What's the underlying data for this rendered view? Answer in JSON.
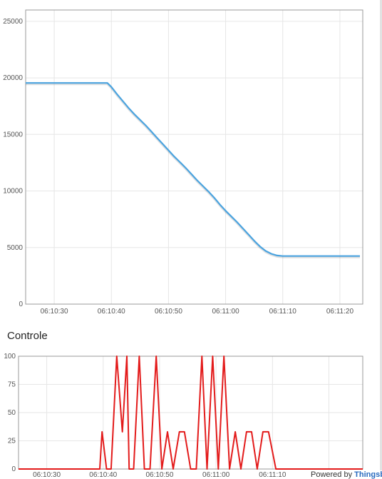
{
  "chart_data": [
    {
      "type": "line",
      "title": "",
      "xlabel": "",
      "ylabel": "",
      "x_ticks": [
        "06:10:30",
        "06:10:40",
        "06:10:50",
        "06:11:00",
        "06:11:10",
        "06:11:20"
      ],
      "x_tick_seconds": [
        30,
        40,
        50,
        60,
        70,
        80
      ],
      "xlim_seconds": [
        25,
        84
      ],
      "ylim": [
        0,
        26000
      ],
      "y_ticks": [
        0,
        5000,
        10000,
        15000,
        20000,
        25000
      ],
      "grid": true,
      "series": [
        {
          "color": "#4aa3df",
          "x": [
            25,
            31,
            36,
            39.3,
            40,
            41,
            42,
            43,
            44,
            45,
            46,
            47,
            48,
            49,
            50,
            51,
            52,
            53,
            54,
            55,
            56,
            57,
            58,
            59,
            60,
            61,
            62,
            63,
            64,
            65,
            66,
            67,
            68,
            69,
            70,
            71,
            72,
            73,
            76,
            80,
            83.5
          ],
          "y": [
            19550,
            19550,
            19550,
            19550,
            19200,
            18550,
            17950,
            17350,
            16800,
            16300,
            15800,
            15250,
            14700,
            14150,
            13600,
            13050,
            12550,
            12050,
            11500,
            10950,
            10450,
            9950,
            9400,
            8800,
            8250,
            7750,
            7250,
            6700,
            6150,
            5600,
            5100,
            4700,
            4450,
            4300,
            4250,
            4250,
            4250,
            4250,
            4250,
            4250,
            4250
          ]
        }
      ]
    },
    {
      "type": "line",
      "title": "Controle",
      "xlabel": "",
      "ylabel": "",
      "x_ticks": [
        "06:10:30",
        "06:10:40",
        "06:10:50",
        "06:11:00",
        "06:11:10",
        "06:11:20"
      ],
      "x_tick_seconds": [
        30,
        40,
        50,
        60,
        70,
        80
      ],
      "xlim_seconds": [
        25,
        86
      ],
      "ylim": [
        0,
        100
      ],
      "y_ticks": [
        0,
        25,
        50,
        75,
        100
      ],
      "grid": true,
      "series": [
        {
          "color": "#e31b1b",
          "x": [
            25,
            38.2,
            39.4,
            39.8,
            40.6,
            41.4,
            42.4,
            43.4,
            44.2,
            44.6,
            45.4,
            46.4,
            47.3,
            48.3,
            49.4,
            50.4,
            51.4,
            52.4,
            53.5,
            54.4,
            55.5,
            56.5,
            57.5,
            58.4,
            59.4,
            60.4,
            61.4,
            62.4,
            63.4,
            64.4,
            65.4,
            66.3,
            67.3,
            68.3,
            69.3,
            70.6,
            71.6,
            80,
            86
          ],
          "y": [
            0,
            0,
            0,
            33,
            0,
            0,
            100,
            33,
            100,
            0,
            0,
            100,
            0,
            0,
            100,
            0,
            33,
            0,
            33,
            33,
            0,
            0,
            100,
            0,
            100,
            0,
            100,
            0,
            33,
            0,
            33,
            33,
            0,
            33,
            33,
            0,
            0,
            0,
            0
          ]
        }
      ]
    }
  ],
  "footer": {
    "powered_by": "Powered by",
    "brand": "Thingsb"
  }
}
